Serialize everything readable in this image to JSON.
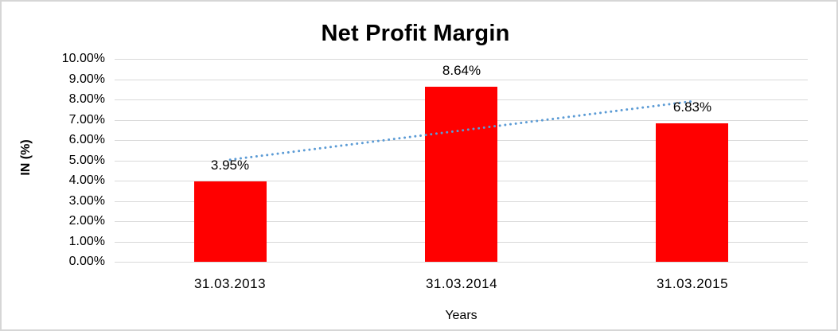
{
  "chart_data": {
    "type": "bar",
    "title": "Net Profit Margin",
    "categories": [
      "31.03.2013",
      "31.03.2014",
      "31.03.2015"
    ],
    "values": [
      3.95,
      8.64,
      6.83
    ],
    "data_labels": [
      "3.95%",
      "8.64%",
      "6.83%"
    ],
    "xlabel": "Years",
    "ylabel": "IN (%)",
    "ylim": [
      0,
      10
    ],
    "ytick_step": 1,
    "ytick_labels": [
      "0.00%",
      "1.00%",
      "2.00%",
      "3.00%",
      "4.00%",
      "5.00%",
      "6.00%",
      "7.00%",
      "8.00%",
      "9.00%",
      "10.00%"
    ],
    "grid": true,
    "grid_color": "#d9d9d9",
    "legend": "none",
    "bar_color": "#ff0000",
    "trendline": {
      "style": "dotted",
      "color": "#5b9bd5",
      "start_value": 5.03,
      "end_value": 7.91
    },
    "frame_border_color": "#d6d6d6",
    "background_color": "#ffffff"
  }
}
